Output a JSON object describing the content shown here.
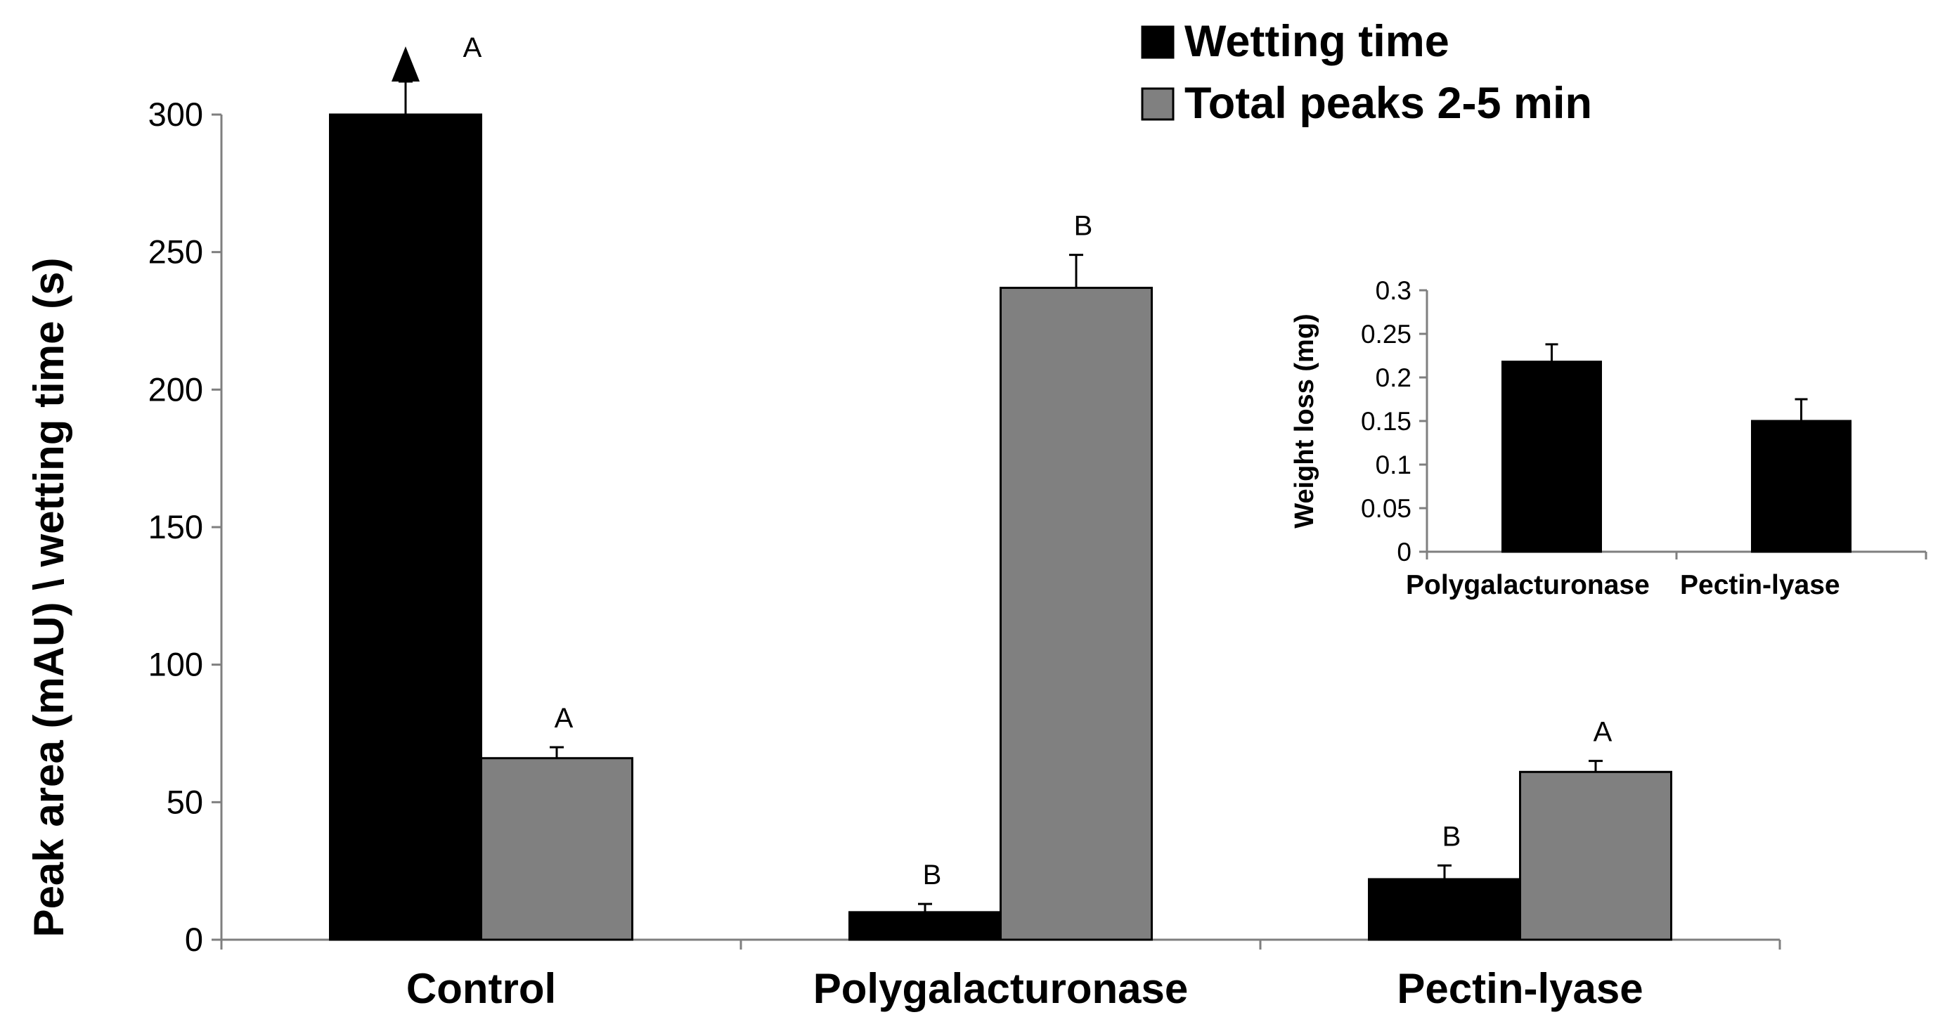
{
  "chart_data": [
    {
      "type": "bar",
      "title": "",
      "xlabel": "",
      "ylabel": "Peak area (mAU) \\ wetting time (s)",
      "ylim": [
        0,
        300
      ],
      "yticks": [
        "0",
        "50",
        "100",
        "150",
        "200",
        "250",
        "300"
      ],
      "categories": [
        "Control",
        "Polygalacturonase",
        "Pectin-lyase"
      ],
      "legend_position": "top-right",
      "series": [
        {
          "name": "Wetting time",
          "color": "#000000",
          "values": [
            300,
            10,
            22
          ],
          "errors": [
            12,
            3,
            5
          ],
          "labels": [
            "A",
            "B",
            "B"
          ],
          "overflow_arrow": [
            true,
            false,
            false
          ]
        },
        {
          "name": "Total peaks 2-5 min",
          "color": "#808080",
          "values": [
            66,
            237,
            61
          ],
          "errors": [
            4,
            12,
            4
          ],
          "labels": [
            "A",
            "B",
            "A"
          ],
          "overflow_arrow": [
            false,
            false,
            false
          ]
        }
      ],
      "grid": false
    },
    {
      "type": "bar",
      "title": "",
      "xlabel": "",
      "ylabel": "Weight loss (mg)",
      "ylim": [
        0,
        0.3
      ],
      "yticks": [
        "0",
        "0.05",
        "0.1",
        "0.15",
        "0.2",
        "0.25",
        "0.3"
      ],
      "categories": [
        "Polygalacturonase",
        "Pectin-lyase"
      ],
      "series": [
        {
          "color": "#000000",
          "values": [
            0.218,
            0.15
          ],
          "errors": [
            0.02,
            0.025
          ]
        }
      ],
      "grid": false
    }
  ]
}
